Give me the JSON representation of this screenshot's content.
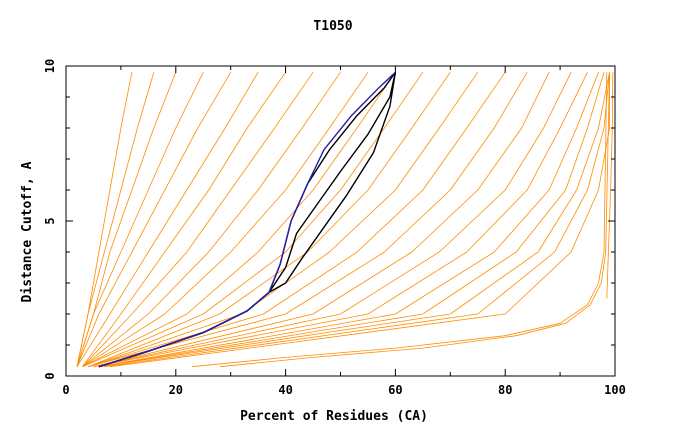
{
  "chart_data": {
    "type": "line",
    "title": "T1050",
    "xlabel": "Percent of Residues (CA)",
    "ylabel": "Distance Cutoff, A",
    "xlim": [
      0,
      100
    ],
    "ylim": [
      0,
      10
    ],
    "x_ticks": [
      "0",
      "20",
      "40",
      "60",
      "80",
      "100"
    ],
    "y_ticks": [
      "0",
      "5",
      "10"
    ],
    "grid": false,
    "legend": "none",
    "colors": {
      "bundle": "#ff8c00",
      "highlight_blue": "#2a1fa8",
      "highlight_black": "#000000",
      "frame": "#000000"
    },
    "bundle_curves": [
      {
        "x": [
          2,
          4,
          6,
          8,
          10,
          12
        ],
        "y": [
          0.3,
          2,
          4,
          6,
          8,
          9.8
        ]
      },
      {
        "x": [
          2,
          4,
          7,
          10,
          13,
          16
        ],
        "y": [
          0.3,
          2,
          4,
          6,
          8,
          9.8
        ]
      },
      {
        "x": [
          2,
          5,
          8,
          12,
          16,
          20
        ],
        "y": [
          0.3,
          2,
          4,
          6,
          8,
          9.8
        ]
      },
      {
        "x": [
          2,
          5,
          10,
          15,
          20,
          25
        ],
        "y": [
          0.3,
          2,
          4,
          6,
          8,
          9.8
        ]
      },
      {
        "x": [
          2,
          6,
          12,
          18,
          24,
          30
        ],
        "y": [
          0.3,
          2,
          4,
          6,
          8,
          9.8
        ]
      },
      {
        "x": [
          2,
          8,
          15,
          22,
          29,
          35
        ],
        "y": [
          0.3,
          2,
          4,
          6,
          8,
          9.8
        ]
      },
      {
        "x": [
          3,
          10,
          18,
          26,
          33,
          40
        ],
        "y": [
          0.3,
          2,
          4,
          6,
          8,
          9.8
        ]
      },
      {
        "x": [
          3,
          12,
          22,
          30,
          38,
          45
        ],
        "y": [
          0.3,
          2,
          4,
          6,
          8,
          9.8
        ]
      },
      {
        "x": [
          3,
          15,
          26,
          35,
          43,
          50
        ],
        "y": [
          0.3,
          2,
          4,
          6,
          8,
          9.8
        ]
      },
      {
        "x": [
          3,
          18,
          30,
          40,
          48,
          55
        ],
        "y": [
          0.3,
          2,
          4,
          6,
          8,
          9.8
        ]
      },
      {
        "x": [
          3,
          22,
          35,
          45,
          53,
          60
        ],
        "y": [
          0.3,
          2,
          4,
          6,
          8,
          9.8
        ]
      },
      {
        "x": [
          3,
          25,
          40,
          50,
          58,
          65
        ],
        "y": [
          0.3,
          2,
          4,
          6,
          8,
          9.8
        ]
      },
      {
        "x": [
          4,
          28,
          44,
          55,
          63,
          70
        ],
        "y": [
          0.3,
          2,
          4,
          6,
          8,
          9.8
        ]
      },
      {
        "x": [
          4,
          32,
          48,
          60,
          68,
          75
        ],
        "y": [
          0.3,
          2,
          4,
          6,
          8,
          9.8
        ]
      },
      {
        "x": [
          4,
          36,
          53,
          65,
          73,
          80
        ],
        "y": [
          0.3,
          2,
          4,
          6,
          8,
          9.8
        ]
      },
      {
        "x": [
          4,
          40,
          58,
          70,
          78,
          84
        ],
        "y": [
          0.3,
          2,
          4,
          6,
          8,
          9.8
        ]
      },
      {
        "x": [
          5,
          45,
          63,
          75,
          83,
          88
        ],
        "y": [
          0.3,
          2,
          4,
          6,
          8,
          9.8
        ]
      },
      {
        "x": [
          5,
          50,
          68,
          80,
          87,
          92
        ],
        "y": [
          0.3,
          2,
          4,
          6,
          8,
          9.8
        ]
      },
      {
        "x": [
          5,
          55,
          73,
          84,
          90,
          95
        ],
        "y": [
          0.3,
          2,
          4,
          6,
          8,
          9.8
        ]
      },
      {
        "x": [
          6,
          60,
          78,
          88,
          93,
          97
        ],
        "y": [
          0.3,
          2,
          4,
          6,
          8,
          9.8
        ]
      },
      {
        "x": [
          6,
          65,
          82,
          91,
          95,
          98
        ],
        "y": [
          0.3,
          2,
          4,
          6,
          8,
          9.8
        ]
      },
      {
        "x": [
          6,
          70,
          86,
          93,
          97,
          99
        ],
        "y": [
          0.3,
          2,
          4,
          6,
          8,
          9.8
        ]
      },
      {
        "x": [
          7,
          75,
          89,
          95,
          98,
          99
        ],
        "y": [
          0.3,
          2,
          4,
          6,
          8,
          9.8
        ]
      },
      {
        "x": [
          8,
          80,
          92,
          97,
          99,
          99
        ],
        "y": [
          0.3,
          2,
          4,
          6,
          8,
          9.8
        ]
      }
    ],
    "outlier_curves": [
      {
        "x": [
          23,
          40,
          60,
          80,
          90,
          95,
          97,
          98,
          98.5
        ],
        "y": [
          0.3,
          0.6,
          0.9,
          1.3,
          1.7,
          2.3,
          3.0,
          4.0,
          9.8
        ]
      },
      {
        "x": [
          28,
          45,
          65,
          82,
          91,
          95.5,
          97.5,
          98.3,
          99
        ],
        "y": [
          0.3,
          0.6,
          0.9,
          1.3,
          1.7,
          2.3,
          3.0,
          4.0,
          9.8
        ]
      },
      {
        "x": [
          98.5,
          98.8,
          99.2,
          99.5,
          99.6
        ],
        "y": [
          2.5,
          4,
          6,
          8,
          9.8
        ]
      }
    ],
    "highlight_curves": [
      {
        "name": "",
        "color": "blue",
        "x": [
          6,
          15,
          25,
          33,
          37,
          39,
          41,
          44,
          47,
          52,
          57,
          60
        ],
        "y": [
          0.3,
          0.8,
          1.4,
          2.1,
          2.7,
          3.6,
          5,
          6.2,
          7.3,
          8.4,
          9.3,
          9.8
        ]
      },
      {
        "name": "",
        "color": "black",
        "x": [
          6,
          15,
          25,
          33,
          37,
          39,
          41,
          44,
          48,
          53,
          58,
          60
        ],
        "y": [
          0.3,
          0.8,
          1.4,
          2.1,
          2.7,
          3.6,
          5,
          6.2,
          7.3,
          8.4,
          9.3,
          9.8
        ]
      },
      {
        "name": "",
        "color": "black",
        "x": [
          6,
          15,
          25,
          33,
          37,
          40,
          42,
          46,
          50,
          55,
          59,
          60
        ],
        "y": [
          0.3,
          0.8,
          1.4,
          2.1,
          2.7,
          3.5,
          4.6,
          5.6,
          6.6,
          7.8,
          9.0,
          9.8
        ]
      },
      {
        "name": "",
        "color": "black",
        "x": [
          6,
          15,
          25,
          33,
          37,
          40,
          43,
          47,
          51,
          56,
          59,
          60
        ],
        "y": [
          0.3,
          0.8,
          1.4,
          2.1,
          2.7,
          3.0,
          3.8,
          4.8,
          5.8,
          7.2,
          8.7,
          9.8
        ]
      }
    ]
  }
}
